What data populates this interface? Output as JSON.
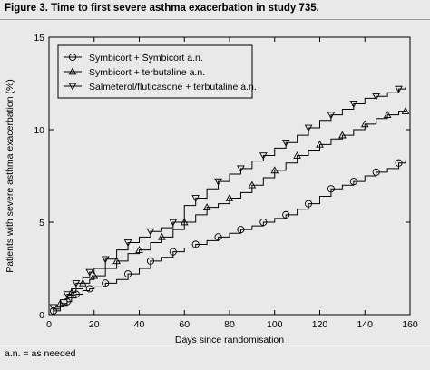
{
  "figure": {
    "title": "Figure 3. Time to first severe asthma exacerbation in study 735.",
    "footnote": "a.n. = as needed"
  },
  "chart_data": {
    "type": "line",
    "title": "Figure 3. Time to first severe asthma exacerbation in study 735.",
    "xlabel": "Days since randomisation",
    "ylabel": "Patients with severe asthma exacerbation (%)",
    "xlim": [
      0,
      160
    ],
    "ylim": [
      0,
      15
    ],
    "xticks": [
      0,
      20,
      40,
      60,
      80,
      100,
      120,
      140,
      160
    ],
    "yticks": [
      0,
      5,
      10,
      15
    ],
    "legend_position": "top-left",
    "grid": false,
    "series": [
      {
        "name": "Symbicort + Symbicort a.n.",
        "marker": "circle",
        "x": [
          0,
          2,
          5,
          8,
          10,
          12,
          15,
          18,
          20,
          25,
          30,
          35,
          40,
          45,
          50,
          55,
          60,
          65,
          70,
          75,
          80,
          85,
          90,
          95,
          100,
          105,
          110,
          115,
          120,
          125,
          130,
          135,
          140,
          145,
          150,
          155,
          158
        ],
        "y": [
          0,
          0.2,
          0.5,
          0.7,
          0.9,
          1.1,
          1.3,
          1.4,
          1.5,
          1.7,
          1.9,
          2.2,
          2.5,
          2.9,
          3.1,
          3.4,
          3.6,
          3.8,
          4.0,
          4.2,
          4.4,
          4.6,
          4.8,
          5.0,
          5.2,
          5.4,
          5.7,
          6.0,
          6.4,
          6.8,
          7.0,
          7.2,
          7.5,
          7.7,
          7.9,
          8.2,
          8.3
        ]
      },
      {
        "name": "Symbicort + terbutaline a.n.",
        "marker": "triangle-up",
        "x": [
          0,
          2,
          5,
          8,
          10,
          12,
          15,
          18,
          20,
          25,
          30,
          35,
          40,
          45,
          50,
          55,
          60,
          65,
          70,
          75,
          80,
          85,
          90,
          95,
          100,
          105,
          110,
          115,
          120,
          125,
          130,
          135,
          140,
          145,
          150,
          155,
          158
        ],
        "y": [
          0,
          0.3,
          0.6,
          0.9,
          1.2,
          1.4,
          1.7,
          1.9,
          2.1,
          2.5,
          2.9,
          3.3,
          3.5,
          3.9,
          4.2,
          4.6,
          5.0,
          5.4,
          5.8,
          6.0,
          6.3,
          6.6,
          7.0,
          7.4,
          7.8,
          8.2,
          8.6,
          8.9,
          9.2,
          9.5,
          9.7,
          10.0,
          10.3,
          10.6,
          10.8,
          11.0,
          11.0
        ]
      },
      {
        "name": "Salmeterol/fluticasone + terbutaline a.n.",
        "marker": "triangle-down",
        "x": [
          0,
          2,
          5,
          8,
          10,
          12,
          15,
          18,
          20,
          25,
          30,
          35,
          40,
          45,
          50,
          55,
          60,
          65,
          70,
          75,
          80,
          85,
          90,
          95,
          100,
          105,
          110,
          115,
          120,
          125,
          130,
          135,
          140,
          145,
          150,
          155,
          158
        ],
        "y": [
          0,
          0.4,
          0.8,
          1.1,
          1.4,
          1.7,
          2.0,
          2.3,
          2.5,
          3.0,
          3.5,
          3.9,
          4.2,
          4.5,
          4.7,
          5.0,
          5.9,
          6.3,
          6.8,
          7.2,
          7.6,
          7.9,
          8.3,
          8.6,
          9.0,
          9.3,
          9.7,
          10.1,
          10.5,
          10.8,
          11.1,
          11.4,
          11.7,
          11.8,
          12.0,
          12.2,
          12.3
        ]
      }
    ]
  }
}
